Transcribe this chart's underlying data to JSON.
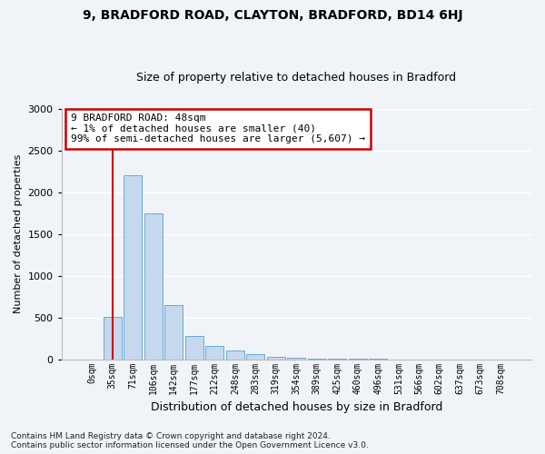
{
  "title1": "9, BRADFORD ROAD, CLAYTON, BRADFORD, BD14 6HJ",
  "title2": "Size of property relative to detached houses in Bradford",
  "xlabel": "Distribution of detached houses by size in Bradford",
  "ylabel": "Number of detached properties",
  "footnote": "Contains HM Land Registry data © Crown copyright and database right 2024.\nContains public sector information licensed under the Open Government Licence v3.0.",
  "bin_labels": [
    "0sqm",
    "35sqm",
    "71sqm",
    "106sqm",
    "142sqm",
    "177sqm",
    "212sqm",
    "248sqm",
    "283sqm",
    "319sqm",
    "354sqm",
    "389sqm",
    "425sqm",
    "460sqm",
    "496sqm",
    "531sqm",
    "566sqm",
    "602sqm",
    "637sqm",
    "673sqm",
    "708sqm"
  ],
  "bar_heights": [
    0,
    510,
    2200,
    1750,
    650,
    280,
    155,
    100,
    65,
    30,
    15,
    8,
    4,
    3,
    2,
    1,
    0,
    0,
    0,
    0,
    0
  ],
  "bar_color": "#c5d8ee",
  "bar_edge_color": "#6aaad4",
  "vline_x": 1,
  "vline_color": "#cc0000",
  "annotation_text": "9 BRADFORD ROAD: 48sqm\n← 1% of detached houses are smaller (40)\n99% of semi-detached houses are larger (5,607) →",
  "annotation_box_edgecolor": "#cc0000",
  "ylim": [
    0,
    3000
  ],
  "yticks": [
    0,
    500,
    1000,
    1500,
    2000,
    2500,
    3000
  ],
  "background_color": "#f0f4f8",
  "grid_color": "#ffffff",
  "tick_label_fontsize": 7,
  "ylabel_fontsize": 8,
  "xlabel_fontsize": 9,
  "title1_fontsize": 10,
  "title2_fontsize": 9,
  "footnote_fontsize": 6.5
}
